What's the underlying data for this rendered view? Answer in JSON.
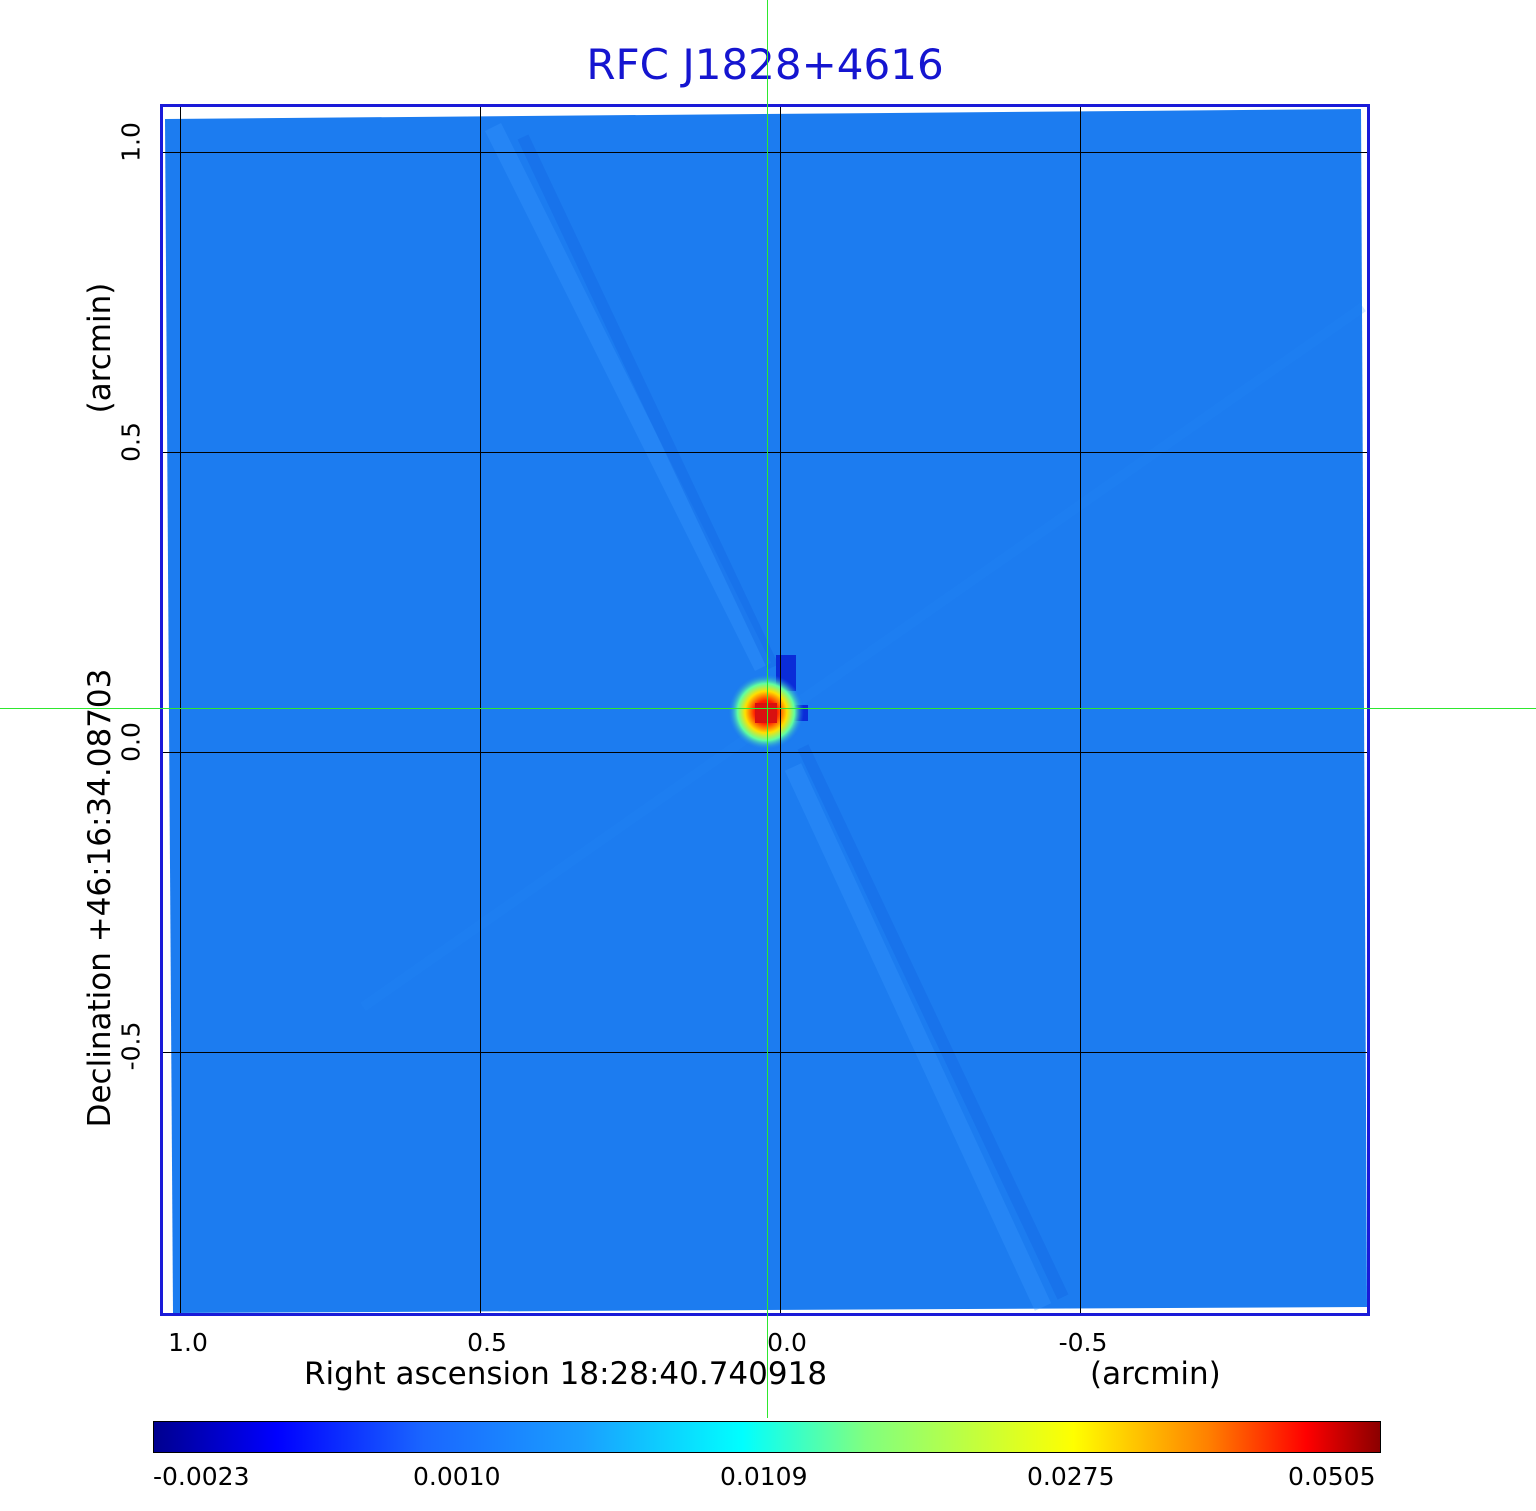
{
  "title": "RFC J1828+4616",
  "x_axis": {
    "label": "Right ascension  18:28:40.740918",
    "unit": "(arcmin)",
    "ticks": [
      "1.0",
      "0.5",
      "0.0",
      "-0.5"
    ]
  },
  "y_axis": {
    "label": "Declination  +46:16:34.08703",
    "unit": "(arcmin)",
    "ticks": [
      "1.0",
      "0.5",
      "0.0",
      "-0.5"
    ]
  },
  "colorbar": {
    "ticks": [
      "-0.0023",
      "0.0010",
      "0.0109",
      "0.0275",
      "0.0505"
    ],
    "colormap": "jet"
  },
  "colors": {
    "title": "#1515d0",
    "frame": "#1a1ad8",
    "crosshair": "#2ee82e",
    "background_sky": "#1c7cf0"
  }
}
